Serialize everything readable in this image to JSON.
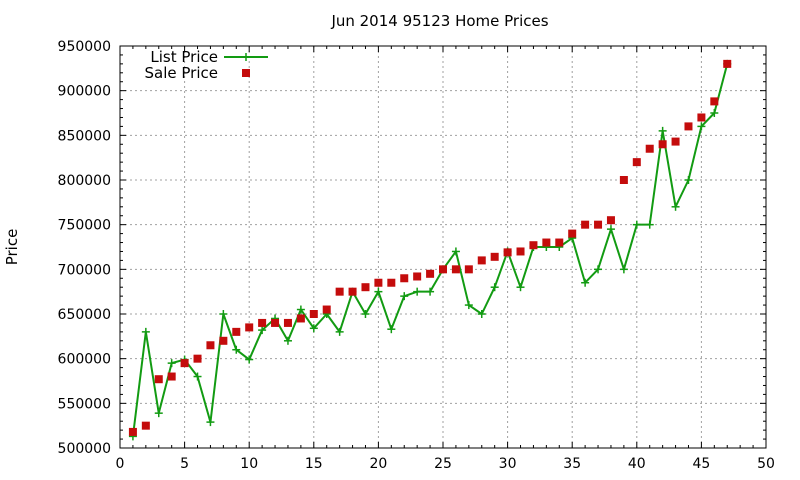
{
  "chart_data": {
    "type": "line",
    "title": "Jun 2014 95123 Home Prices",
    "xlabel": "",
    "ylabel": "Price",
    "xlim": [
      0,
      50
    ],
    "ylim": [
      500000,
      950000
    ],
    "xticks": [
      "0",
      "5",
      "10",
      "15",
      "20",
      "25",
      "30",
      "35",
      "40",
      "45",
      "50"
    ],
    "yticks": [
      "500000",
      "550000",
      "600000",
      "650000",
      "700000",
      "750000",
      "800000",
      "850000",
      "900000",
      "950000"
    ],
    "grid": true,
    "legend_position": "top-left",
    "series": [
      {
        "name": "List Price",
        "style": "line-plus",
        "color": "#129b12",
        "x": [
          1,
          2,
          3,
          4,
          5,
          6,
          7,
          8,
          9,
          10,
          11,
          12,
          13,
          14,
          15,
          16,
          17,
          18,
          19,
          20,
          21,
          22,
          23,
          24,
          25,
          26,
          27,
          28,
          29,
          30,
          31,
          32,
          33,
          34,
          35,
          36,
          37,
          38,
          39,
          40,
          41,
          42,
          43,
          44,
          45,
          46,
          47
        ],
        "y": [
          513000,
          630000,
          539000,
          595000,
          599000,
          580000,
          529000,
          650000,
          610000,
          599000,
          632000,
          645000,
          620000,
          655000,
          634000,
          650000,
          630000,
          675000,
          650000,
          675000,
          633000,
          670000,
          675000,
          675000,
          700000,
          720000,
          660000,
          650000,
          680000,
          720000,
          680000,
          725000,
          725000,
          725000,
          735000,
          685000,
          700000,
          745000,
          700000,
          750000,
          750000,
          855000,
          770000,
          800000,
          860000,
          875000,
          930000
        ]
      },
      {
        "name": "Sale Price",
        "style": "square-markers",
        "color": "#c40c0c",
        "x": [
          1,
          2,
          3,
          4,
          5,
          6,
          7,
          8,
          9,
          10,
          11,
          12,
          13,
          14,
          15,
          16,
          17,
          18,
          19,
          20,
          21,
          22,
          23,
          24,
          25,
          26,
          27,
          28,
          29,
          30,
          31,
          32,
          33,
          34,
          35,
          36,
          37,
          38,
          39,
          40,
          41,
          42,
          43,
          44,
          45,
          46,
          47
        ],
        "y": [
          518000,
          525000,
          577000,
          580000,
          595000,
          600000,
          615000,
          620000,
          630000,
          635000,
          640000,
          640000,
          640000,
          645000,
          650000,
          655000,
          675000,
          675000,
          680000,
          685000,
          685000,
          690000,
          692000,
          695000,
          700000,
          700000,
          700000,
          710000,
          714000,
          719000,
          720000,
          727000,
          730000,
          730000,
          740000,
          750000,
          750000,
          755000,
          800000,
          820000,
          835000,
          840000,
          843000,
          860000,
          870000,
          888000,
          930000
        ]
      }
    ]
  }
}
